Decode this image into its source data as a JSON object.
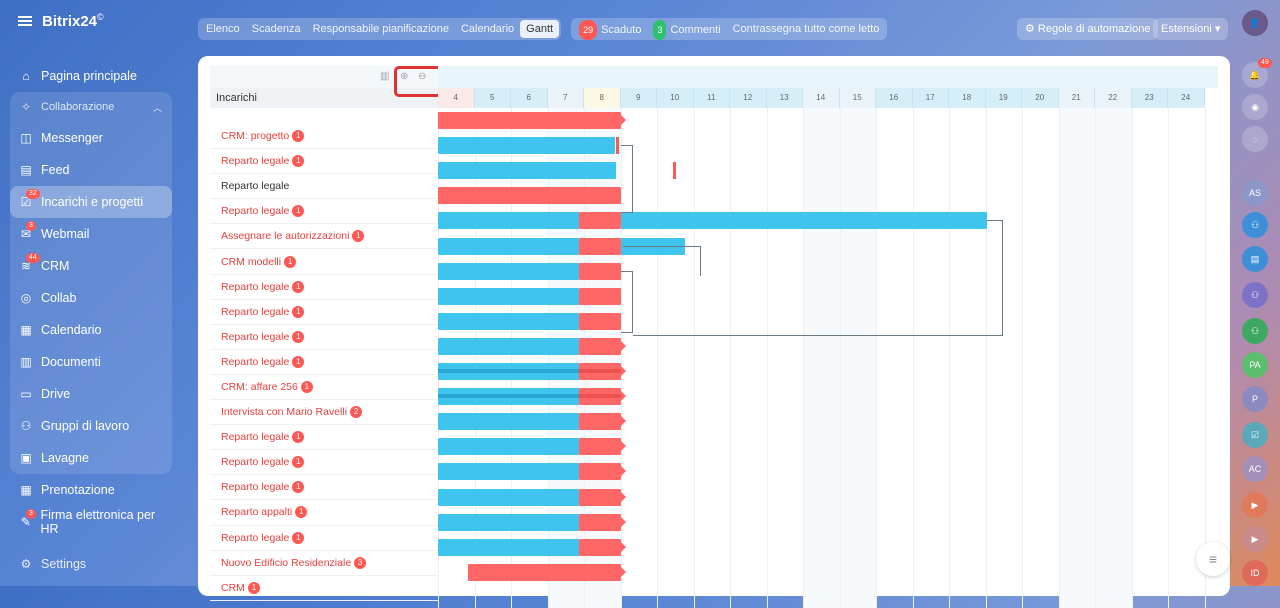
{
  "brand": {
    "name": "Bitrix24",
    "suffix": "©"
  },
  "nav": {
    "home": "Pagina principale",
    "collab_group": "Collaborazione",
    "messenger": "Messenger",
    "feed": "Feed",
    "tasks": "Incarichi e progetti",
    "tasks_badge": "32",
    "webmail": "Webmail",
    "webmail_badge": "3",
    "crm": "CRM",
    "crm_badge": "44",
    "collab": "Collab",
    "calendar": "Calendario",
    "docs": "Documenti",
    "drive": "Drive",
    "groups": "Gruppi di lavoro",
    "boards": "Lavagne",
    "booking": "Prenotazione",
    "esign": "Firma elettronica per HR",
    "esign_badge": "3",
    "settings": "Settings"
  },
  "views": [
    "Elenco",
    "Scadenza",
    "Responsabile pianificazione",
    "Calendario",
    "Gantt"
  ],
  "active_view": "Gantt",
  "filters": {
    "overdue_count": "29",
    "overdue_label": "Scaduto",
    "comments_count": "3",
    "comments_label": "Commenti",
    "mark_read": "Contrassegna tutto come letto"
  },
  "buttons": {
    "automation": "Regole di automazione",
    "extensions": "Estensioni"
  },
  "right_bar": {
    "notif_badge": "49",
    "avatars": [
      "AS",
      "PA",
      "P",
      "AC",
      "ID"
    ]
  },
  "grid": {
    "header": "Incarichi"
  },
  "days": [
    "4",
    "5",
    "6",
    "7",
    "8",
    "9",
    "10",
    "11",
    "12",
    "13",
    "14",
    "15",
    "16",
    "17",
    "18",
    "19",
    "20",
    "21",
    "22",
    "23",
    "24"
  ],
  "tasks": [
    {
      "title": "CRM: progetto",
      "badge": "1",
      "red": true
    },
    {
      "title": "Reparto legale",
      "badge": "1",
      "red": true
    },
    {
      "title": "Reparto legale",
      "badge": "",
      "red": false
    },
    {
      "title": "Reparto legale",
      "badge": "1",
      "red": true
    },
    {
      "title": "Assegnare le autorizzazioni",
      "badge": "1",
      "red": true
    },
    {
      "title": "CRM modelli",
      "badge": "1",
      "red": true
    },
    {
      "title": "Reparto legale",
      "badge": "1",
      "red": true
    },
    {
      "title": "Reparto legale",
      "badge": "1",
      "red": true
    },
    {
      "title": "Reparto legale",
      "badge": "1",
      "red": true
    },
    {
      "title": "Reparto legale",
      "badge": "1",
      "red": true
    },
    {
      "title": "CRM: affare 256",
      "badge": "1",
      "red": true
    },
    {
      "title": "Intervista con Mario Ravelli",
      "badge": "2",
      "red": true
    },
    {
      "title": "Reparto legale",
      "badge": "1",
      "red": true
    },
    {
      "title": "Reparto legale",
      "badge": "1",
      "red": true
    },
    {
      "title": "Reparto legale",
      "badge": "1",
      "red": true
    },
    {
      "title": "Reparto appalti",
      "badge": "1",
      "red": true
    },
    {
      "title": "Reparto legale",
      "badge": "1",
      "red": true
    },
    {
      "title": "Nuovo Edificio Residenziale",
      "badge": "3",
      "red": true
    },
    {
      "title": "CRM",
      "badge": "1",
      "red": true
    }
  ]
}
